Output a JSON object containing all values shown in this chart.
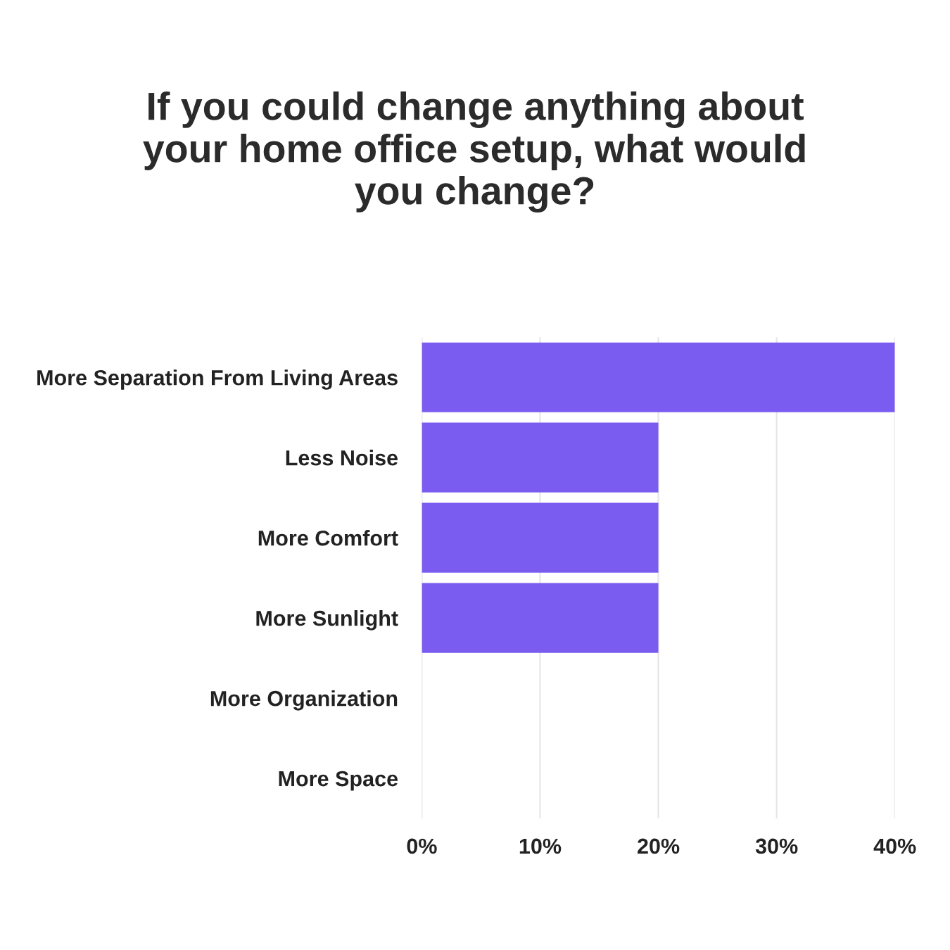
{
  "chart_data": {
    "type": "bar",
    "orientation": "horizontal",
    "title": "If you could change anything about\nyour home office setup, what would\nyou change?",
    "categories": [
      "More Separation From Living Areas",
      "Less Noise",
      "More Comfort",
      "More Sunlight",
      "More Organization",
      "More Space"
    ],
    "values": [
      40,
      20,
      20,
      20,
      0,
      0
    ],
    "color": "#7b5cf0",
    "xlim": [
      0,
      40
    ],
    "xticks": [
      {
        "value": 0,
        "label": "0%"
      },
      {
        "value": 10,
        "label": "10%"
      },
      {
        "value": 20,
        "label": "20%"
      },
      {
        "value": 30,
        "label": "30%"
      },
      {
        "value": 40,
        "label": "40%"
      }
    ],
    "grid": "x"
  }
}
